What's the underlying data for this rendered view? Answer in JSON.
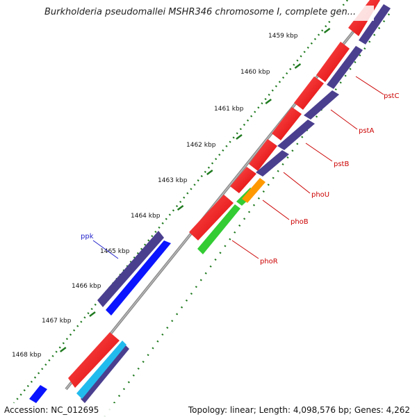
{
  "header": {
    "title": "Burkholderia pseudomallei MSHR346 chromosome I, complete gen..."
  },
  "ruler": {
    "ticks": [
      {
        "label": "1459 kbp"
      },
      {
        "label": "1460 kbp"
      },
      {
        "label": "1461 kbp"
      },
      {
        "label": "1462 kbp"
      },
      {
        "label": "1463 kbp"
      },
      {
        "label": "1464 kbp"
      },
      {
        "label": "1465 kbp"
      },
      {
        "label": "1466 kbp"
      },
      {
        "label": "1467 kbp"
      },
      {
        "label": "1468 kbp"
      }
    ]
  },
  "genes": [
    {
      "label": "pstC"
    },
    {
      "label": "pstA"
    },
    {
      "label": "pstB"
    },
    {
      "label": "phoU"
    },
    {
      "label": "phoB"
    },
    {
      "label": "phoR"
    },
    {
      "label": "ppk"
    }
  ],
  "colors": {
    "cds_red": "#ff1a1a",
    "track_purple": "#4a3f8f",
    "orf_blue": "#0a14ff",
    "green": "#33cc33",
    "orange": "#ff9900",
    "cyan": "#22bbee",
    "backbone": "#888888",
    "tick_green": "#1f7a1f",
    "label_red": "#cc0000",
    "label_blue": "#2222cc"
  },
  "footer": {
    "accession": "Accession: NC_012695",
    "summary": "Topology: linear; Length: 4,098,576 bp; Genes: 4,262"
  }
}
